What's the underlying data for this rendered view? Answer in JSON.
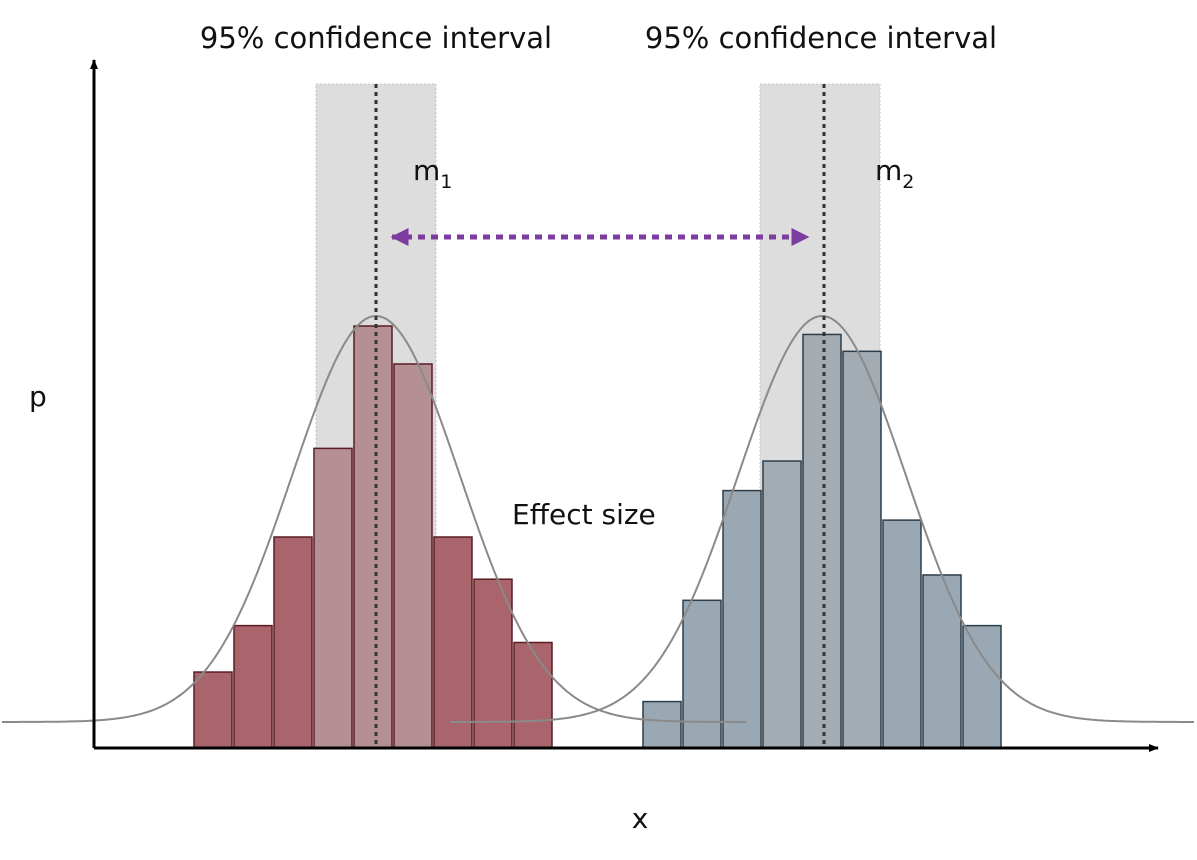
{
  "labels": {
    "ci_left": "95% confidence interval",
    "ci_right": "95% confidence interval",
    "y_axis": "p",
    "x_axis": "x",
    "mean1_base": "m",
    "mean1_sub": "1",
    "mean2_base": "m",
    "mean2_sub": "2",
    "effect": "Effect size"
  },
  "colors": {
    "group1_bar": "#a9656b",
    "group1_bar_in_ci": "#b49094",
    "group1_stroke": "#5a1d24",
    "group2_bar": "#9aa8b3",
    "group2_bar_in_ci": "#a3acb3",
    "group2_stroke": "#2d3d4a",
    "ci_band": "#dddddd",
    "curve": "#8a8a8a",
    "effect_arrow": "#7d3ca0",
    "axis": "#000000"
  },
  "chart_data": {
    "type": "bar",
    "x_axis_label": "x",
    "y_axis_label": "p",
    "series": [
      {
        "name": "m1",
        "values": [
          0.18,
          0.29,
          0.5,
          0.71,
          1.0,
          0.91,
          0.5,
          0.4,
          0.25
        ],
        "ci_bar_range": [
          3,
          5
        ],
        "mean_index": 4
      },
      {
        "name": "m2",
        "values": [
          0.11,
          0.35,
          0.61,
          0.68,
          0.98,
          0.94,
          0.54,
          0.41,
          0.29
        ],
        "ci_bar_range": [
          3,
          5
        ],
        "mean_index": 4
      }
    ]
  }
}
